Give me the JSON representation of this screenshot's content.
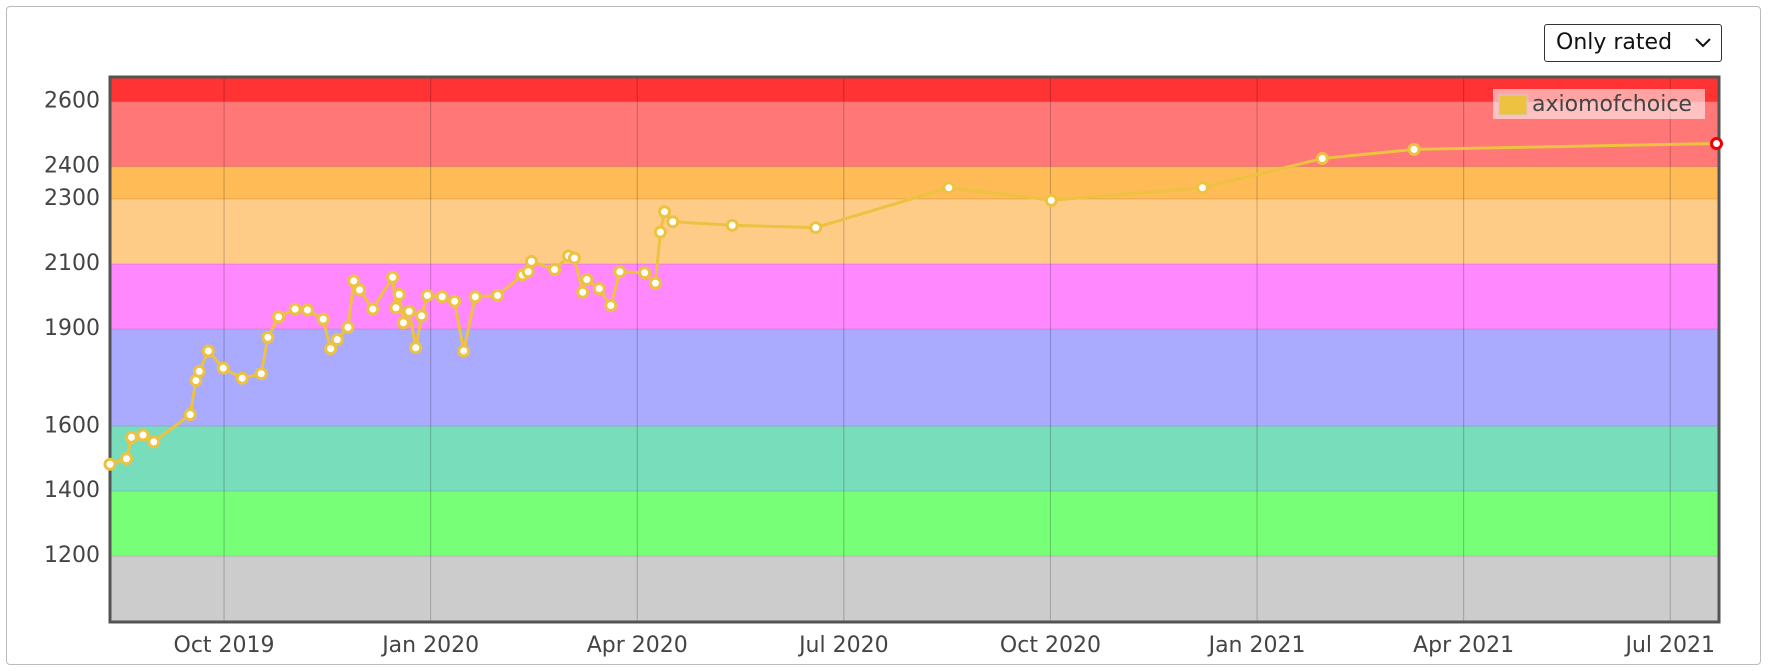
{
  "filter_select": "Only rated",
  "chart_data": {
    "type": "line",
    "x": [
      2019.612,
      2019.632,
      2019.638,
      2019.652,
      2019.665,
      2019.709,
      2019.716,
      2019.72,
      2019.731,
      2019.749,
      2019.772,
      2019.795,
      2019.803,
      2019.816,
      2019.836,
      2019.851,
      2019.87,
      2019.879,
      2019.887,
      2019.9,
      2019.907,
      2019.914,
      2019.93,
      2019.954,
      2019.958,
      2019.962,
      2019.967,
      2019.974,
      2019.982,
      2019.989,
      2019.996,
      2020.014,
      2020.029,
      2020.04,
      2020.054,
      2020.081,
      2020.111,
      2020.118,
      2020.122,
      2020.15,
      2020.167,
      2020.174,
      2020.184,
      2020.189,
      2020.204,
      2020.218,
      2020.229,
      2020.259,
      2020.272,
      2020.278,
      2020.283,
      2020.293,
      2020.365,
      2020.466,
      2020.627,
      2020.751,
      2020.934,
      2021.079,
      2021.19,
      2021.556
    ],
    "series": [
      {
        "name": "axiomofchoice",
        "color": "#edc240",
        "values": [
          1483,
          1500,
          1566,
          1573,
          1552,
          1636,
          1741,
          1769,
          1832,
          1779,
          1748,
          1762,
          1874,
          1937,
          1961,
          1958,
          1930,
          1839,
          1867,
          1905,
          2048,
          2020,
          1961,
          2059,
          1965,
          2006,
          1919,
          1954,
          1842,
          1940,
          2003,
          1999,
          1985,
          1832,
          1999,
          2003,
          2066,
          2076,
          2108,
          2083,
          2125,
          2118,
          2013,
          2052,
          2024,
          1972,
          2076,
          2073,
          2041,
          2198,
          2261,
          2230,
          2219,
          2212,
          2335,
          2296,
          2335,
          2425,
          2453,
          2471
        ]
      }
    ],
    "xlim": [
      2019.612,
      2021.559
    ],
    "xticks": [
      {
        "value": 2019.75,
        "label": "Oct 2019"
      },
      {
        "value": 2020.0,
        "label": "Jan 2020"
      },
      {
        "value": 2020.25,
        "label": "Apr 2020"
      },
      {
        "value": 2020.5,
        "label": "Jul 2020"
      },
      {
        "value": 2020.75,
        "label": "Oct 2020"
      },
      {
        "value": 2021.0,
        "label": "Jan 2021"
      },
      {
        "value": 2021.25,
        "label": "Apr 2021"
      },
      {
        "value": 2021.5,
        "label": "Jul 2021"
      }
    ],
    "ylim": [
      997,
      2676
    ],
    "yticks": [
      1200,
      1400,
      1600,
      1900,
      2100,
      2300,
      2400,
      2600
    ],
    "grid": true,
    "legend": "top-right",
    "bands": [
      {
        "from": 997,
        "to": 1200,
        "color": "#cccccc"
      },
      {
        "from": 1200,
        "to": 1400,
        "color": "#77ff77"
      },
      {
        "from": 1400,
        "to": 1600,
        "color": "#77ddbb"
      },
      {
        "from": 1600,
        "to": 1900,
        "color": "#aaaaff"
      },
      {
        "from": 1900,
        "to": 2100,
        "color": "#ff88ff"
      },
      {
        "from": 2100,
        "to": 2300,
        "color": "#ffcc88"
      },
      {
        "from": 2300,
        "to": 2400,
        "color": "#ffbb55"
      },
      {
        "from": 2400,
        "to": 2600,
        "color": "#ff7777"
      },
      {
        "from": 2600,
        "to": 2676,
        "color": "#ff3333"
      }
    ]
  }
}
